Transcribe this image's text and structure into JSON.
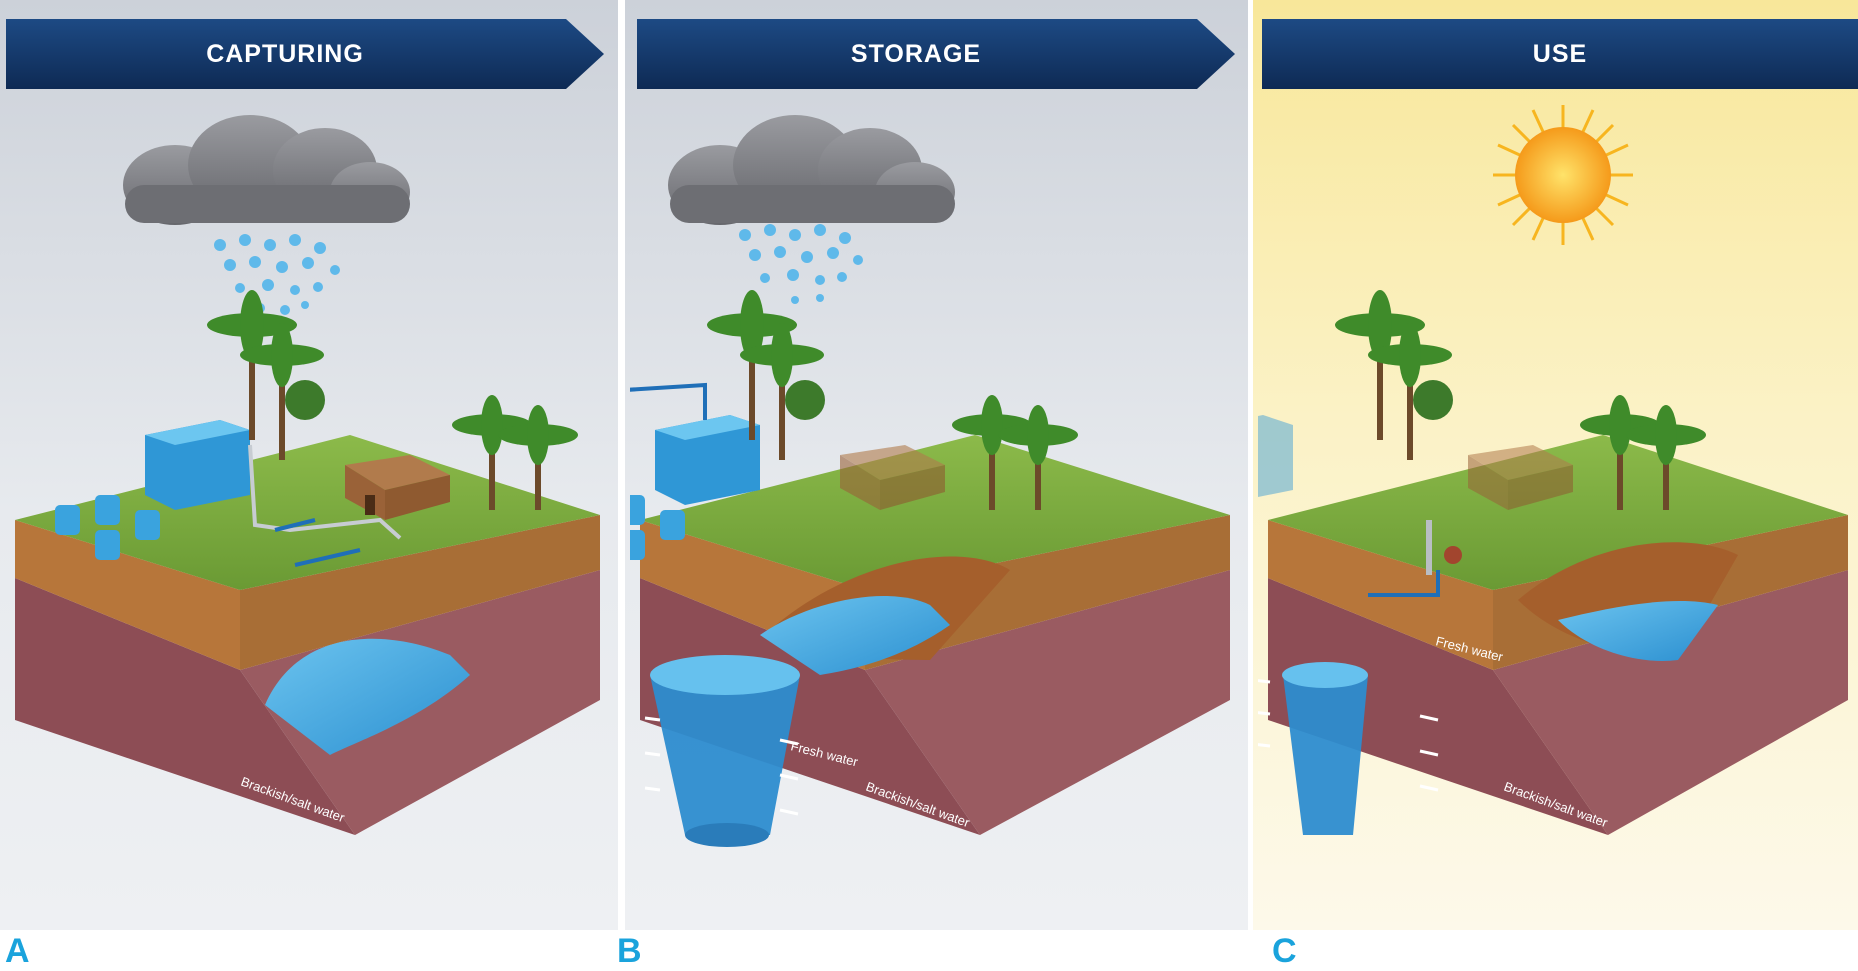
{
  "panels": [
    {
      "letter": "A",
      "title": "CAPTURING",
      "labels": {
        "brackish": "Brackish/salt water"
      }
    },
    {
      "letter": "B",
      "title": "STORAGE",
      "labels": {
        "fresh": "Fresh water",
        "brackish": "Brackish/salt water"
      }
    },
    {
      "letter": "C",
      "title": "USE",
      "labels": {
        "fresh": "Fresh water",
        "brackish": "Brackish/salt water"
      }
    }
  ],
  "colors": {
    "banner": "#163a6b",
    "label_letter": "#1aa3dc",
    "water": "#3ea9e0",
    "soil": "#94555c",
    "grass": "#78a83e",
    "cloud": "#7d7e82",
    "sun": "#f7a21b"
  }
}
